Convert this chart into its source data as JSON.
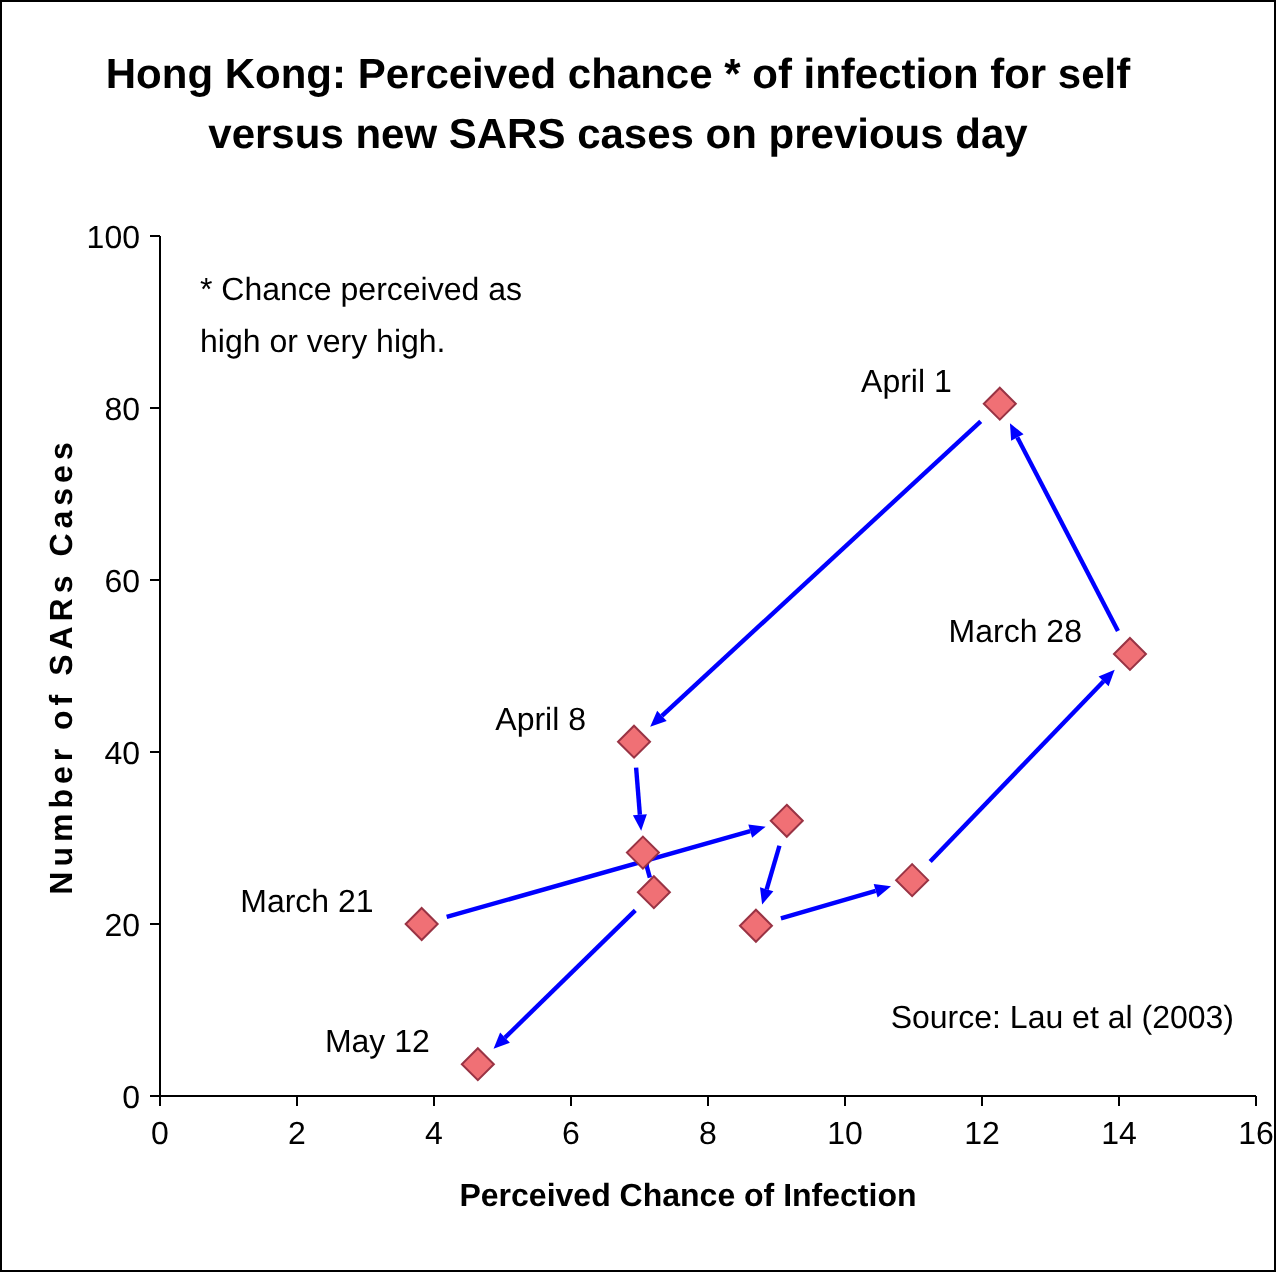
{
  "chart_data": {
    "type": "scatter",
    "title": "Hong Kong: Perceived chance * of infection for self versus new SARS cases on previous day",
    "xlabel": "Perceived Chance of Infection",
    "ylabel": "Number of SARs Cases",
    "xlim": [
      0,
      16
    ],
    "xticks": [
      0,
      2,
      4,
      6,
      8,
      10,
      12,
      14,
      16
    ],
    "ylim": [
      0,
      100
    ],
    "yticks": [
      0,
      20,
      40,
      60,
      80,
      100
    ],
    "grid": false,
    "marker": "diamond",
    "series": [
      {
        "color": "#f07075",
        "x": [
          3.82,
          9.15,
          8.7,
          10.98,
          14.16,
          12.26,
          6.92,
          7.05,
          7.21,
          4.64
        ],
        "values": [
          20,
          32,
          19.8,
          25.1,
          51.4,
          80.5,
          41.2,
          28.3,
          23.7,
          3.7
        ]
      }
    ],
    "annotations": [
      "* Chance perceived as high or very high.",
      "Source: Lau et al (2003)",
      {
        "text": "March 21",
        "x": 3.82,
        "y": 20
      },
      {
        "text": "March 28",
        "x": 14.16,
        "y": 51.4
      },
      {
        "text": "April 1",
        "x": 12.26,
        "y": 80.5
      },
      {
        "text": "April 8",
        "x": 6.92,
        "y": 41.2
      },
      {
        "text": "May 12",
        "x": 4.64,
        "y": 3.7
      }
    ]
  }
}
